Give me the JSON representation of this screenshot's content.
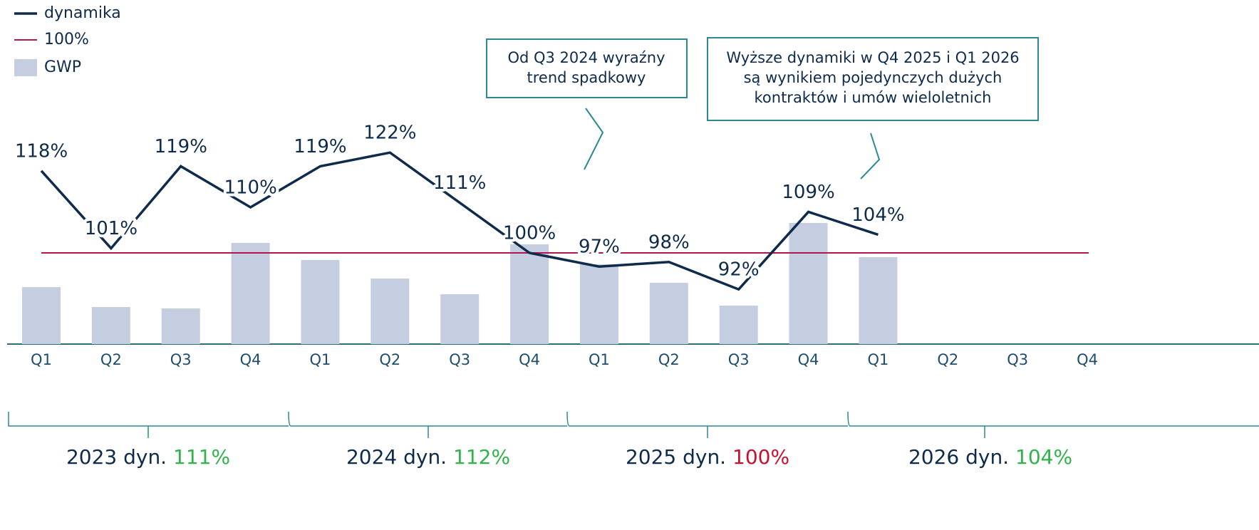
{
  "chart_data": {
    "type": "bar-line",
    "categories": [
      "Q1",
      "Q2",
      "Q3",
      "Q4",
      "Q1",
      "Q2",
      "Q3",
      "Q4",
      "Q1",
      "Q2",
      "Q3",
      "Q4",
      "Q1",
      "Q2",
      "Q3",
      "Q4"
    ],
    "series": [
      {
        "name": "dynamika",
        "type": "line",
        "color": "#0e2b4b",
        "values": [
          118,
          101,
          119,
          110,
          119,
          122,
          111,
          100,
          97,
          98,
          92,
          109,
          104,
          null,
          null,
          null
        ],
        "value_labels": [
          "118%",
          "101%",
          "119%",
          "110%",
          "119%",
          "122%",
          "111%",
          "100%",
          "97%",
          "98%",
          "92%",
          "109%",
          "104%",
          null,
          null,
          null
        ]
      },
      {
        "name": "GWP",
        "type": "bar",
        "axis": "y2",
        "color": "#c5cee0",
        "values": [
          40,
          26,
          25,
          71,
          59,
          46,
          35,
          70,
          56,
          43,
          27,
          85,
          61,
          null,
          null,
          null
        ]
      }
    ],
    "reference_line": {
      "name": "100%",
      "value": 100,
      "color": "#b0174c"
    },
    "ylim": [
      80,
      155
    ],
    "y2lim": [
      0,
      240
    ],
    "annotations": [
      {
        "lines": [
          "Od Q3 2024 wyraźny",
          "trend spadkowy"
        ]
      },
      {
        "lines": [
          "Wyższe dynamiki w Q4 2025 i Q1 2026",
          "są wynikiem pojedynczych dużych",
          "kontraktów i umów wieloletnich"
        ]
      }
    ],
    "year_totals": {
      "labels": [
        "2023 dyn.",
        "2024 dyn.",
        "2025 dyn.",
        "2026 dyn."
      ],
      "values": [
        111,
        112,
        100,
        104
      ],
      "value_labels": [
        "111%",
        "112%",
        "100%",
        "104%"
      ],
      "colors": [
        "#2fb34a",
        "#2fb34a",
        "#c8102e",
        "#2fb34a"
      ]
    }
  }
}
